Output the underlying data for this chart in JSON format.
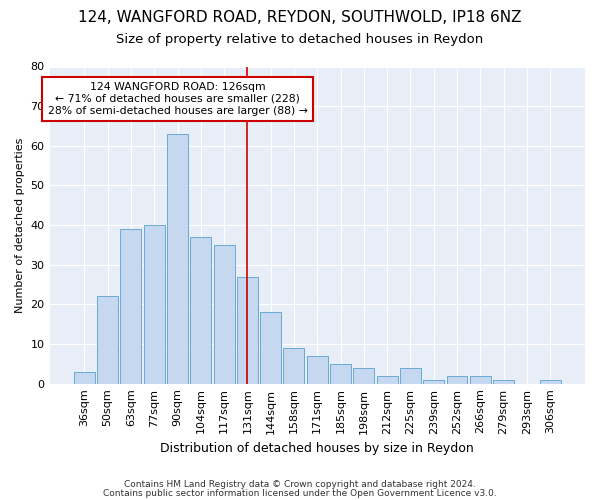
{
  "title1": "124, WANGFORD ROAD, REYDON, SOUTHWOLD, IP18 6NZ",
  "title2": "Size of property relative to detached houses in Reydon",
  "xlabel": "Distribution of detached houses by size in Reydon",
  "ylabel": "Number of detached properties",
  "categories": [
    "36sqm",
    "50sqm",
    "63sqm",
    "77sqm",
    "90sqm",
    "104sqm",
    "117sqm",
    "131sqm",
    "144sqm",
    "158sqm",
    "171sqm",
    "185sqm",
    "198sqm",
    "212sqm",
    "225sqm",
    "239sqm",
    "252sqm",
    "266sqm",
    "279sqm",
    "293sqm",
    "306sqm"
  ],
  "values": [
    3,
    22,
    39,
    40,
    63,
    37,
    35,
    27,
    18,
    9,
    7,
    5,
    4,
    2,
    4,
    1,
    2,
    2,
    1,
    0,
    1
  ],
  "bar_color": "#c5d8ef",
  "bar_edge_color": "#6aaad4",
  "fig_background_color": "#ffffff",
  "ax_background_color": "#e8eef8",
  "vline_index": 7,
  "vline_color": "#cc0000",
  "annotation_line1": "124 WANGFORD ROAD: 126sqm",
  "annotation_line2": "← 71% of detached houses are smaller (228)",
  "annotation_line3": "28% of semi-detached houses are larger (88) →",
  "annotation_box_facecolor": "#ffffff",
  "annotation_box_edgecolor": "#cc0000",
  "ylim": [
    0,
    80
  ],
  "yticks": [
    0,
    10,
    20,
    30,
    40,
    50,
    60,
    70,
    80
  ],
  "footer1": "Contains HM Land Registry data © Crown copyright and database right 2024.",
  "footer2": "Contains public sector information licensed under the Open Government Licence v3.0.",
  "title1_fontsize": 11,
  "title2_fontsize": 9.5,
  "xlabel_fontsize": 9,
  "ylabel_fontsize": 8,
  "tick_fontsize": 8,
  "footer_fontsize": 6.5
}
